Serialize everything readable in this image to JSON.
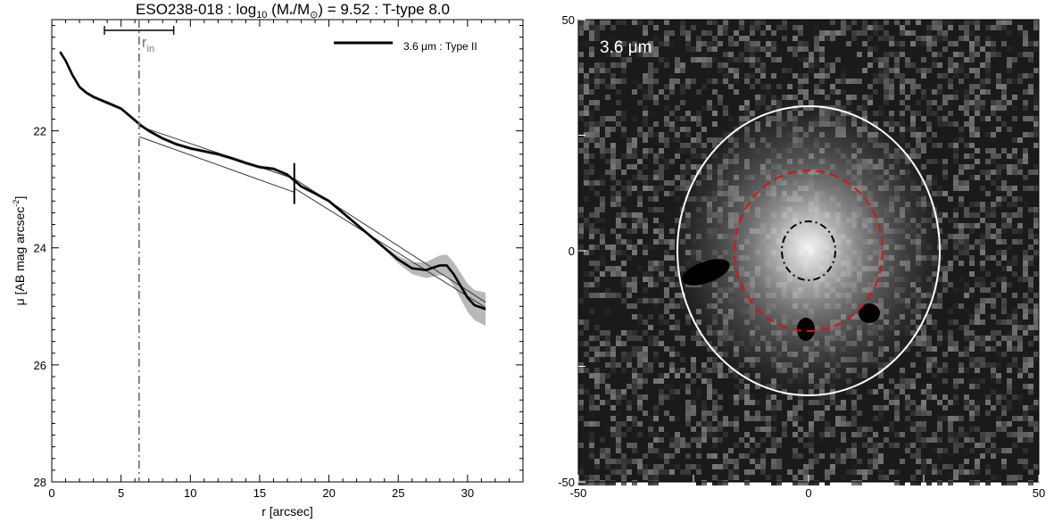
{
  "chart_data": [
    {
      "type": "line",
      "title_parts": {
        "name": "ESO238-018 : log",
        "sub10": "10",
        "paren_open": " (M",
        "star": "*",
        "slash_m": "/M",
        "sun": "⊙",
        "rest": ") = 9.52 : T-type 8.0"
      },
      "xlabel": "r [arcsec]",
      "ylabel": "μ [AB mag arcsec",
      "ylabel_sup": "-2",
      "ylabel_close": "]",
      "xlim": [
        0,
        34
      ],
      "ylim": [
        28,
        20.1
      ],
      "x_ticks": [
        0,
        5,
        10,
        15,
        20,
        25,
        30
      ],
      "y_ticks": [
        22,
        24,
        26,
        28
      ],
      "legend": {
        "label": "3.6 μm : Type II",
        "position": "top-right"
      },
      "r_in": {
        "base": "r",
        "sub": "in",
        "x": 6.3,
        "err_low": 3.8,
        "err_high": 8.8
      },
      "break_radius": 17.5,
      "series": [
        {
          "name": "3.6 μm : Type II",
          "x": [
            0.6,
            1.0,
            1.5,
            2.0,
            2.5,
            3.0,
            4.0,
            5.0,
            5.5,
            6.0,
            6.5,
            7.0,
            8.0,
            9.0,
            10.0,
            11.0,
            12.0,
            13.0,
            14.0,
            15.0,
            16.0,
            17.0,
            17.5,
            18.0,
            19.0,
            20.0,
            21.0,
            22.0,
            23.0,
            24.0,
            25.0,
            26.0,
            27.0,
            28.0,
            28.5,
            29.0,
            29.5,
            30.0,
            30.5,
            31.0,
            31.3
          ],
          "y": [
            20.65,
            20.8,
            21.05,
            21.25,
            21.35,
            21.42,
            21.52,
            21.62,
            21.72,
            21.82,
            21.92,
            22.0,
            22.13,
            22.23,
            22.3,
            22.35,
            22.4,
            22.47,
            22.55,
            22.62,
            22.65,
            22.75,
            22.85,
            22.95,
            23.07,
            23.2,
            23.4,
            23.6,
            23.8,
            24.0,
            24.2,
            24.35,
            24.38,
            24.3,
            24.3,
            24.45,
            24.65,
            24.85,
            24.98,
            25.02,
            25.05
          ]
        }
      ],
      "fits": [
        {
          "x": [
            6.3,
            17.5
          ],
          "y": [
            21.92,
            22.82
          ]
        },
        {
          "x": [
            6.3,
            17.5
          ],
          "y": [
            22.1,
            23.05
          ]
        },
        {
          "x": [
            17.5,
            31.3
          ],
          "y": [
            22.98,
            25.02
          ]
        },
        {
          "x": [
            17.5,
            31.3
          ],
          "y": [
            22.82,
            24.93
          ]
        }
      ]
    },
    {
      "type": "heatmap",
      "label": "3.6 μm",
      "xlim": [
        -50,
        50
      ],
      "ylim": [
        -50,
        50
      ],
      "x_ticks": [
        -50,
        0,
        50
      ],
      "y_ticks": [
        -50,
        0,
        50
      ],
      "colors": {
        "outer_ellipse": "#ffffff",
        "break_ellipse": "#e01010",
        "inner_ellipse": "#000000"
      }
    }
  ]
}
